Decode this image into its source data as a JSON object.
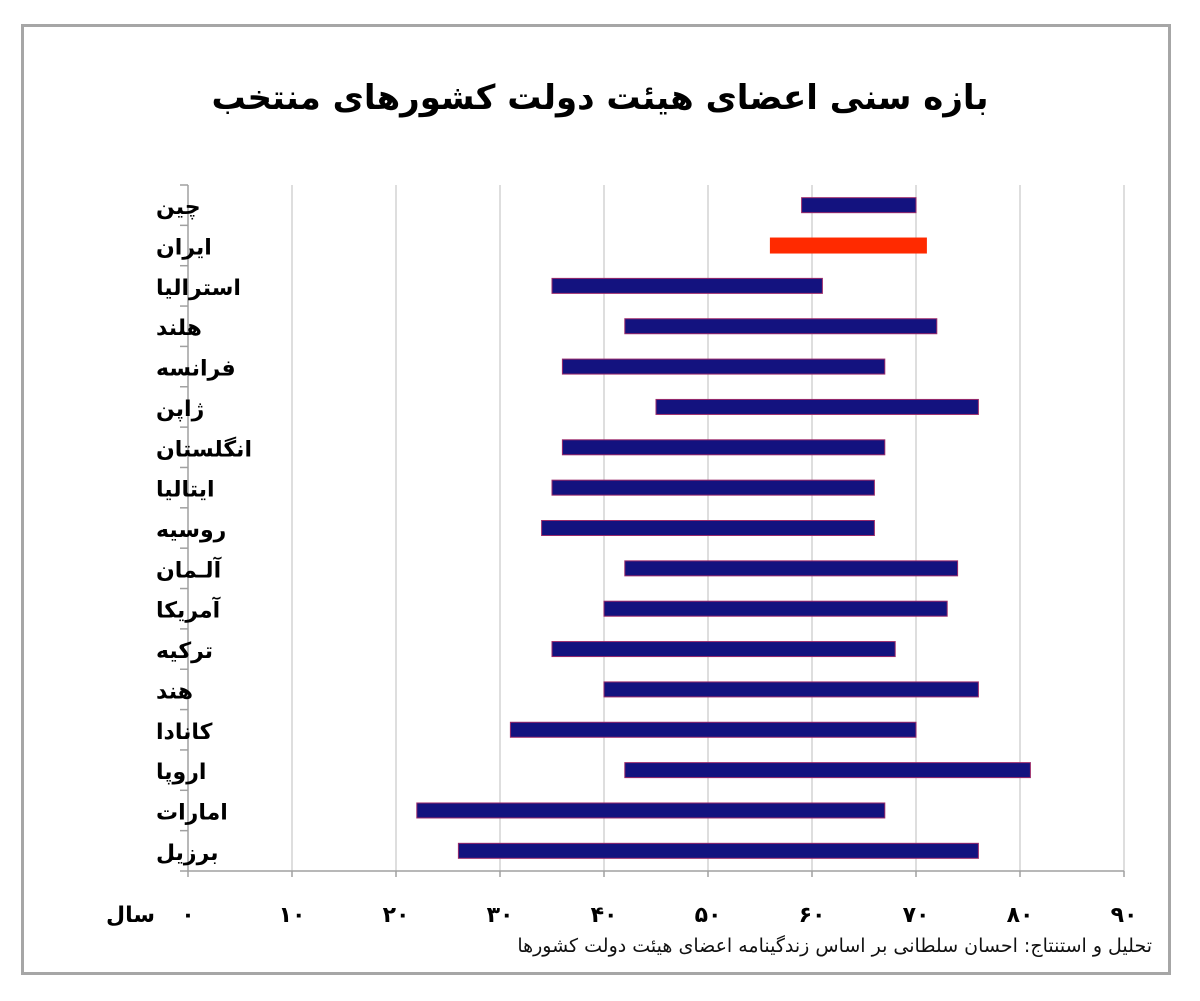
{
  "chart_data": {
    "type": "bar",
    "subtype": "floating-range-horizontal",
    "title": "بازه سنی اعضای هیئت دولت کشورهای منتخب",
    "xlabel": "سال",
    "ylabel": "",
    "xlim": [
      0,
      90
    ],
    "x_ticks": [
      0,
      10,
      20,
      30,
      40,
      50,
      60,
      70,
      80,
      90
    ],
    "x_tick_labels": [
      "۰",
      "۱۰",
      "۲۰",
      "۳۰",
      "۴۰",
      "۵۰",
      "۶۰",
      "۷۰",
      "۸۰",
      "۹۰"
    ],
    "grid": "vertical",
    "categories": [
      "چین",
      "ایران",
      "استرالیا",
      "هلند",
      "فرانسه",
      "ژاپن",
      "انگلستان",
      "ایتالیا",
      "روسیه",
      "آلـمان",
      "آمریکا",
      "ترکیه",
      "هند",
      "کانادا",
      "اروپا",
      "امارات",
      "برزیل"
    ],
    "ranges": [
      [
        59,
        70
      ],
      [
        56,
        71
      ],
      [
        35,
        61
      ],
      [
        42,
        72
      ],
      [
        36,
        67
      ],
      [
        45,
        76
      ],
      [
        36,
        67
      ],
      [
        35,
        66
      ],
      [
        34,
        66
      ],
      [
        42,
        74
      ],
      [
        40,
        73
      ],
      [
        35,
        68
      ],
      [
        40,
        76
      ],
      [
        31,
        70
      ],
      [
        42,
        81
      ],
      [
        22,
        67
      ],
      [
        26,
        76
      ]
    ],
    "highlight_category": "ایران",
    "colors": {
      "bar": "#13127f",
      "highlight": "#ff2a00",
      "grid": "#c8c8c8",
      "axis": "#a0a0a0"
    }
  },
  "source_note": "تحلیل و استنتاج: احسان سلطانی بر اساس زندگینامه اعضای هیئت دولت کشورها"
}
